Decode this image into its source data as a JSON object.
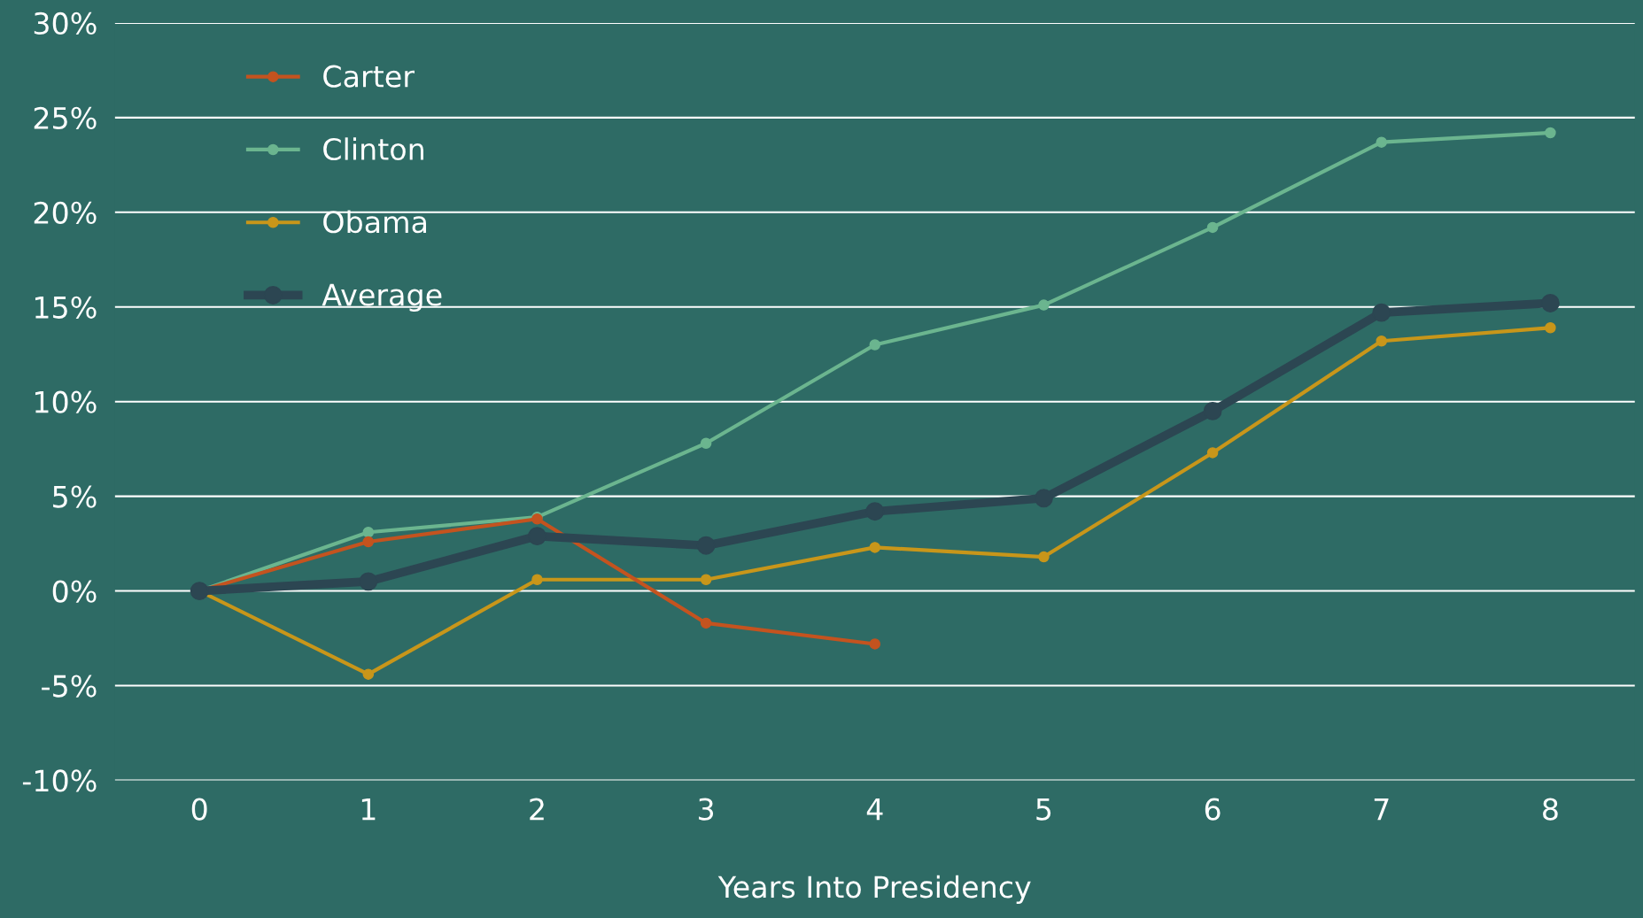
{
  "chart_data": {
    "type": "line",
    "xlabel": "Years Into Presidency",
    "x": [
      0,
      1,
      2,
      3,
      4,
      5,
      6,
      7,
      8
    ],
    "series": [
      {
        "name": "Carter",
        "color": "#c4531f",
        "values": [
          0,
          2.6,
          3.8,
          -1.7,
          -2.8,
          null,
          null,
          null,
          null
        ]
      },
      {
        "name": "Clinton",
        "color": "#6bb58f",
        "values": [
          0,
          3.1,
          3.9,
          7.8,
          13.0,
          15.1,
          19.2,
          23.7,
          24.2
        ]
      },
      {
        "name": "Obama",
        "color": "#c8961a",
        "values": [
          0,
          -4.4,
          0.6,
          0.6,
          2.3,
          1.8,
          7.3,
          13.2,
          13.9
        ]
      },
      {
        "name": "Average",
        "color": "#2c4652",
        "values": [
          0,
          0.5,
          2.9,
          2.4,
          4.2,
          4.9,
          9.5,
          14.7,
          15.2
        ]
      }
    ],
    "xlim": [
      -0.5,
      8.5
    ],
    "xticks": [
      0,
      1,
      2,
      3,
      4,
      5,
      6,
      7,
      8
    ],
    "ylim": [
      -10,
      30
    ],
    "yticks": [
      {
        "value": -10,
        "label": "-10%"
      },
      {
        "value": -5,
        "label": "-5%"
      },
      {
        "value": 0,
        "label": "0%"
      },
      {
        "value": 5,
        "label": "5%"
      },
      {
        "value": 10,
        "label": "10%"
      },
      {
        "value": 15,
        "label": "15%"
      },
      {
        "value": 20,
        "label": "20%"
      },
      {
        "value": 25,
        "label": "25%"
      },
      {
        "value": 30,
        "label": "30%"
      }
    ],
    "grid": "y",
    "legend": "top left",
    "marker": "circle",
    "line_style": "solid"
  }
}
